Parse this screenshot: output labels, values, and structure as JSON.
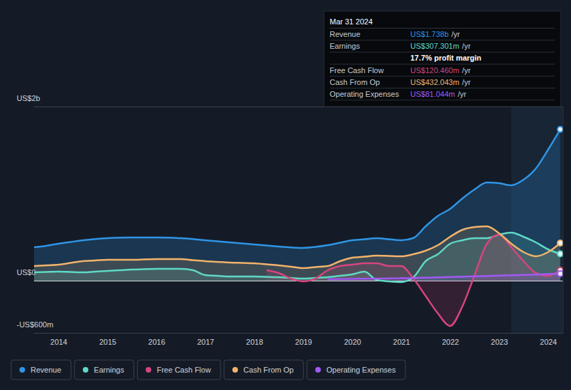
{
  "chart_data": {
    "type": "area",
    "x": [
      2013.5,
      2013.75,
      2014,
      2014.25,
      2014.5,
      2014.75,
      2015,
      2015.25,
      2015.5,
      2015.75,
      2016,
      2016.25,
      2016.5,
      2016.75,
      2017,
      2017.25,
      2017.5,
      2017.75,
      2018,
      2018.25,
      2018.5,
      2018.75,
      2019,
      2019.25,
      2019.5,
      2019.75,
      2020,
      2020.25,
      2020.5,
      2020.75,
      2021,
      2021.25,
      2021.5,
      2021.75,
      2022,
      2022.25,
      2022.5,
      2022.75,
      2023,
      2023.25,
      2023.5,
      2023.75,
      2024,
      2024.25
    ],
    "xlim": [
      2013.5,
      2024.3
    ],
    "xticks": [
      2014,
      2015,
      2016,
      2017,
      2018,
      2019,
      2020,
      2021,
      2022,
      2023,
      2024
    ],
    "ylim": [
      -600,
      2000
    ],
    "yticks": [
      {
        "value": -600,
        "label": "-US$600m"
      },
      {
        "value": 0,
        "label": "US$0"
      },
      {
        "value": 2000,
        "label": "US$2b"
      }
    ],
    "grid": true,
    "legend": "bottom-left",
    "series": [
      {
        "name": "Revenue",
        "color": "#2f95e6",
        "values": [
          384,
          400,
          424,
          444,
          464,
          478,
          488,
          494,
          496,
          496,
          496,
          494,
          488,
          478,
          464,
          452,
          440,
          428,
          416,
          404,
          392,
          382,
          376,
          388,
          408,
          436,
          464,
          476,
          488,
          476,
          464,
          490,
          624,
          744,
          824,
          944,
          1048,
          1128,
          1120,
          1096,
          1160,
          1288,
          1504,
          1738
        ]
      },
      {
        "name": "Earnings",
        "color": "#5fd9c6",
        "values": [
          96,
          100,
          104,
          100,
          96,
          104,
          112,
          120,
          128,
          132,
          136,
          136,
          136,
          120,
          64,
          56,
          48,
          48,
          48,
          44,
          40,
          32,
          24,
          32,
          40,
          56,
          72,
          104,
          8,
          -8,
          -16,
          40,
          224,
          304,
          424,
          464,
          488,
          488,
          528,
          552,
          504,
          440,
          360,
          307.3
        ]
      },
      {
        "name": "Free Cash Flow",
        "color": "#d6457e",
        "values": [
          null,
          null,
          null,
          null,
          null,
          null,
          null,
          null,
          null,
          null,
          null,
          null,
          null,
          null,
          null,
          null,
          null,
          null,
          null,
          120,
          88,
          24,
          -8,
          24,
          120,
          168,
          184,
          200,
          200,
          168,
          168,
          24,
          -176,
          -376,
          -520,
          -296,
          64,
          424,
          528,
          384,
          224,
          88,
          56,
          120.5
        ]
      },
      {
        "name": "Cash From Op",
        "color": "#f2b36b",
        "values": [
          168,
          176,
          184,
          204,
          224,
          232,
          240,
          240,
          240,
          244,
          248,
          248,
          248,
          236,
          224,
          216,
          208,
          204,
          200,
          188,
          176,
          160,
          144,
          156,
          168,
          224,
          264,
          276,
          288,
          284,
          280,
          304,
          344,
          408,
          504,
          584,
          616,
          624,
          544,
          424,
          328,
          280,
          328,
          432
        ]
      },
      {
        "name": "Operating Expenses",
        "color": "#a259f7",
        "values": [
          null,
          null,
          null,
          null,
          null,
          null,
          null,
          null,
          null,
          null,
          null,
          null,
          null,
          null,
          null,
          null,
          null,
          null,
          null,
          null,
          null,
          null,
          null,
          null,
          16,
          18,
          20,
          22,
          24,
          26,
          28,
          30,
          34,
          38,
          42,
          46,
          50,
          54,
          58,
          62,
          66,
          70,
          76,
          81
        ]
      }
    ],
    "annotation": {
      "title": "Mar 31 2024",
      "rows": [
        {
          "label": "Revenue",
          "text": "US$1.738b",
          "suffix": "/yr"
        },
        {
          "label": "Earnings",
          "text": "US$307.301m",
          "suffix": "/yr"
        },
        {
          "text": "17.7% profit margin"
        },
        {
          "label": "Free Cash Flow",
          "text": "US$120.460m",
          "suffix": "/yr"
        },
        {
          "label": "Cash From Op",
          "text": "US$432.043m",
          "suffix": "/yr"
        },
        {
          "label": "Operating Expenses",
          "text": "US$81.044m",
          "suffix": "/yr"
        }
      ]
    }
  }
}
